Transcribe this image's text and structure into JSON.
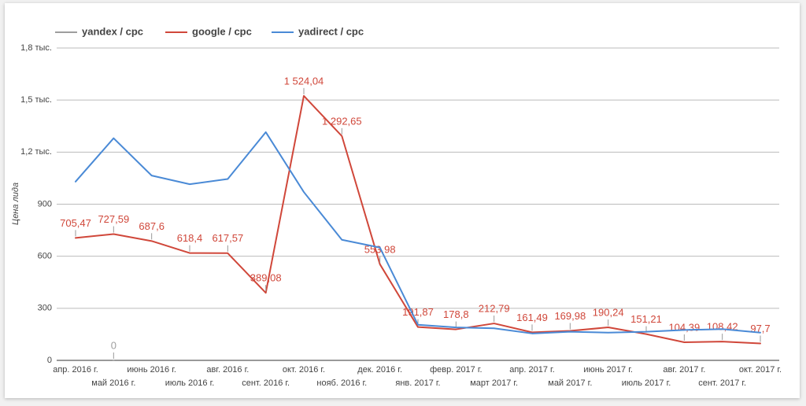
{
  "chart_data": {
    "type": "line",
    "y_label": "Цена лида",
    "categories": [
      "апр. 2016 г.",
      "май 2016 г.",
      "июнь 2016 г.",
      "июль 2016 г.",
      "авг. 2016 г.",
      "сент. 2016 г.",
      "окт. 2016 г.",
      "нояб. 2016 г.",
      "дек. 2016 г.",
      "янв. 2017 г.",
      "февр. 2017 г.",
      "март 2017 г.",
      "апр. 2017 г.",
      "май 2017 г.",
      "июнь 2017 г.",
      "июль 2017 г.",
      "авг. 2017 г.",
      "сент. 2017 г.",
      "окт. 2017 г."
    ],
    "series": [
      {
        "name": "yandex / cpc",
        "color": "#9e9e9e",
        "values": [
          null,
          0,
          null,
          null,
          null,
          null,
          null,
          null,
          null,
          null,
          null,
          null,
          null,
          null,
          null,
          null,
          null,
          null,
          null
        ],
        "value_labels": [
          null,
          "0",
          null,
          null,
          null,
          null,
          null,
          null,
          null,
          null,
          null,
          null,
          null,
          null,
          null,
          null,
          null,
          null,
          null
        ]
      },
      {
        "name": "google / cpc",
        "color": "#d0473a",
        "values": [
          705.47,
          727.59,
          687.6,
          618.4,
          617.57,
          389.08,
          1524.04,
          1292.65,
          553.98,
          191.87,
          178.8,
          212.79,
          161.49,
          169.98,
          190.24,
          151.21,
          104.39,
          108.42,
          97.7
        ],
        "value_labels": [
          "705,47",
          "727,59",
          "687,6",
          "618,4",
          "617,57",
          "389,08",
          "1 524,04",
          "1 292,65",
          "553,98",
          "191,87",
          "178,8",
          "212,79",
          "161,49",
          "169,98",
          "190,24",
          "151,21",
          "104,39",
          "108,42",
          "97,7"
        ]
      },
      {
        "name": "yadirect / cpc",
        "color": "#4a8ad6",
        "values": [
          1030,
          1280,
          1065,
          1015,
          1045,
          1315,
          970,
          695,
          650,
          205,
          190,
          185,
          155,
          165,
          160,
          165,
          175,
          180,
          160
        ]
      }
    ],
    "ylim": [
      0,
      1800
    ],
    "yticks": [
      0,
      300,
      600,
      900,
      {
        "value": 1200,
        "label": "1,2 тыс."
      },
      {
        "value": 1500,
        "label": "1,5 тыс."
      },
      {
        "value": 1800,
        "label": "1,8 тыс."
      }
    ],
    "grid": true,
    "legend": "top"
  }
}
